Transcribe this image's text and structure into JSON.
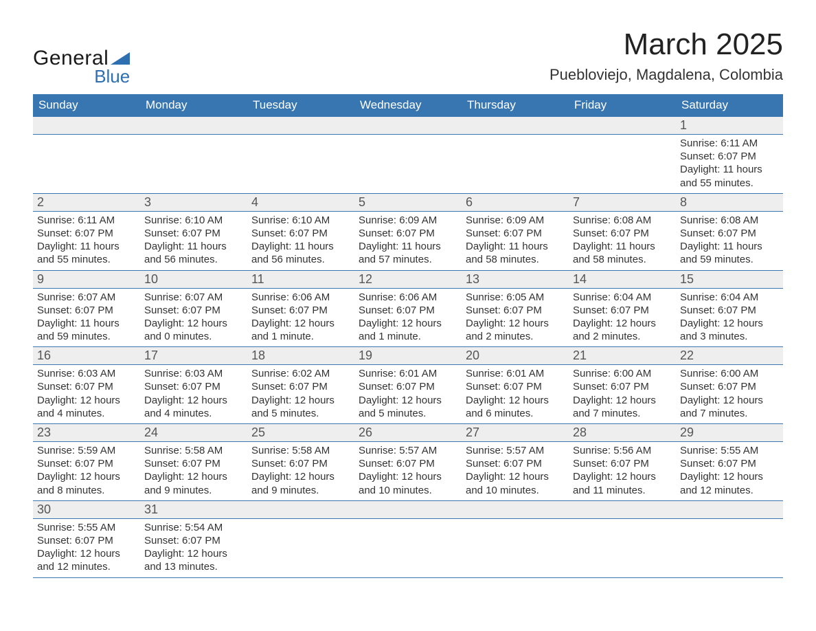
{
  "brand": {
    "word1": "General",
    "word2": "Blue",
    "tri_color": "#2d6fb0"
  },
  "header": {
    "title": "March 2025",
    "subtitle": "Puebloviejo, Magdalena, Colombia"
  },
  "colors": {
    "header_bg": "#3876b2",
    "header_fg": "#ffffff",
    "daynum_bg": "#eeeeee",
    "row_border": "#3876b2",
    "text": "#333333"
  },
  "weekdays": [
    "Sunday",
    "Monday",
    "Tuesday",
    "Wednesday",
    "Thursday",
    "Friday",
    "Saturday"
  ],
  "weeks": [
    [
      {
        "day": "",
        "sunrise": "",
        "sunset": "",
        "daylight": ""
      },
      {
        "day": "",
        "sunrise": "",
        "sunset": "",
        "daylight": ""
      },
      {
        "day": "",
        "sunrise": "",
        "sunset": "",
        "daylight": ""
      },
      {
        "day": "",
        "sunrise": "",
        "sunset": "",
        "daylight": ""
      },
      {
        "day": "",
        "sunrise": "",
        "sunset": "",
        "daylight": ""
      },
      {
        "day": "",
        "sunrise": "",
        "sunset": "",
        "daylight": ""
      },
      {
        "day": "1",
        "sunrise": "Sunrise: 6:11 AM",
        "sunset": "Sunset: 6:07 PM",
        "daylight": "Daylight: 11 hours and 55 minutes."
      }
    ],
    [
      {
        "day": "2",
        "sunrise": "Sunrise: 6:11 AM",
        "sunset": "Sunset: 6:07 PM",
        "daylight": "Daylight: 11 hours and 55 minutes."
      },
      {
        "day": "3",
        "sunrise": "Sunrise: 6:10 AM",
        "sunset": "Sunset: 6:07 PM",
        "daylight": "Daylight: 11 hours and 56 minutes."
      },
      {
        "day": "4",
        "sunrise": "Sunrise: 6:10 AM",
        "sunset": "Sunset: 6:07 PM",
        "daylight": "Daylight: 11 hours and 56 minutes."
      },
      {
        "day": "5",
        "sunrise": "Sunrise: 6:09 AM",
        "sunset": "Sunset: 6:07 PM",
        "daylight": "Daylight: 11 hours and 57 minutes."
      },
      {
        "day": "6",
        "sunrise": "Sunrise: 6:09 AM",
        "sunset": "Sunset: 6:07 PM",
        "daylight": "Daylight: 11 hours and 58 minutes."
      },
      {
        "day": "7",
        "sunrise": "Sunrise: 6:08 AM",
        "sunset": "Sunset: 6:07 PM",
        "daylight": "Daylight: 11 hours and 58 minutes."
      },
      {
        "day": "8",
        "sunrise": "Sunrise: 6:08 AM",
        "sunset": "Sunset: 6:07 PM",
        "daylight": "Daylight: 11 hours and 59 minutes."
      }
    ],
    [
      {
        "day": "9",
        "sunrise": "Sunrise: 6:07 AM",
        "sunset": "Sunset: 6:07 PM",
        "daylight": "Daylight: 11 hours and 59 minutes."
      },
      {
        "day": "10",
        "sunrise": "Sunrise: 6:07 AM",
        "sunset": "Sunset: 6:07 PM",
        "daylight": "Daylight: 12 hours and 0 minutes."
      },
      {
        "day": "11",
        "sunrise": "Sunrise: 6:06 AM",
        "sunset": "Sunset: 6:07 PM",
        "daylight": "Daylight: 12 hours and 1 minute."
      },
      {
        "day": "12",
        "sunrise": "Sunrise: 6:06 AM",
        "sunset": "Sunset: 6:07 PM",
        "daylight": "Daylight: 12 hours and 1 minute."
      },
      {
        "day": "13",
        "sunrise": "Sunrise: 6:05 AM",
        "sunset": "Sunset: 6:07 PM",
        "daylight": "Daylight: 12 hours and 2 minutes."
      },
      {
        "day": "14",
        "sunrise": "Sunrise: 6:04 AM",
        "sunset": "Sunset: 6:07 PM",
        "daylight": "Daylight: 12 hours and 2 minutes."
      },
      {
        "day": "15",
        "sunrise": "Sunrise: 6:04 AM",
        "sunset": "Sunset: 6:07 PM",
        "daylight": "Daylight: 12 hours and 3 minutes."
      }
    ],
    [
      {
        "day": "16",
        "sunrise": "Sunrise: 6:03 AM",
        "sunset": "Sunset: 6:07 PM",
        "daylight": "Daylight: 12 hours and 4 minutes."
      },
      {
        "day": "17",
        "sunrise": "Sunrise: 6:03 AM",
        "sunset": "Sunset: 6:07 PM",
        "daylight": "Daylight: 12 hours and 4 minutes."
      },
      {
        "day": "18",
        "sunrise": "Sunrise: 6:02 AM",
        "sunset": "Sunset: 6:07 PM",
        "daylight": "Daylight: 12 hours and 5 minutes."
      },
      {
        "day": "19",
        "sunrise": "Sunrise: 6:01 AM",
        "sunset": "Sunset: 6:07 PM",
        "daylight": "Daylight: 12 hours and 5 minutes."
      },
      {
        "day": "20",
        "sunrise": "Sunrise: 6:01 AM",
        "sunset": "Sunset: 6:07 PM",
        "daylight": "Daylight: 12 hours and 6 minutes."
      },
      {
        "day": "21",
        "sunrise": "Sunrise: 6:00 AM",
        "sunset": "Sunset: 6:07 PM",
        "daylight": "Daylight: 12 hours and 7 minutes."
      },
      {
        "day": "22",
        "sunrise": "Sunrise: 6:00 AM",
        "sunset": "Sunset: 6:07 PM",
        "daylight": "Daylight: 12 hours and 7 minutes."
      }
    ],
    [
      {
        "day": "23",
        "sunrise": "Sunrise: 5:59 AM",
        "sunset": "Sunset: 6:07 PM",
        "daylight": "Daylight: 12 hours and 8 minutes."
      },
      {
        "day": "24",
        "sunrise": "Sunrise: 5:58 AM",
        "sunset": "Sunset: 6:07 PM",
        "daylight": "Daylight: 12 hours and 9 minutes."
      },
      {
        "day": "25",
        "sunrise": "Sunrise: 5:58 AM",
        "sunset": "Sunset: 6:07 PM",
        "daylight": "Daylight: 12 hours and 9 minutes."
      },
      {
        "day": "26",
        "sunrise": "Sunrise: 5:57 AM",
        "sunset": "Sunset: 6:07 PM",
        "daylight": "Daylight: 12 hours and 10 minutes."
      },
      {
        "day": "27",
        "sunrise": "Sunrise: 5:57 AM",
        "sunset": "Sunset: 6:07 PM",
        "daylight": "Daylight: 12 hours and 10 minutes."
      },
      {
        "day": "28",
        "sunrise": "Sunrise: 5:56 AM",
        "sunset": "Sunset: 6:07 PM",
        "daylight": "Daylight: 12 hours and 11 minutes."
      },
      {
        "day": "29",
        "sunrise": "Sunrise: 5:55 AM",
        "sunset": "Sunset: 6:07 PM",
        "daylight": "Daylight: 12 hours and 12 minutes."
      }
    ],
    [
      {
        "day": "30",
        "sunrise": "Sunrise: 5:55 AM",
        "sunset": "Sunset: 6:07 PM",
        "daylight": "Daylight: 12 hours and 12 minutes."
      },
      {
        "day": "31",
        "sunrise": "Sunrise: 5:54 AM",
        "sunset": "Sunset: 6:07 PM",
        "daylight": "Daylight: 12 hours and 13 minutes."
      },
      {
        "day": "",
        "sunrise": "",
        "sunset": "",
        "daylight": ""
      },
      {
        "day": "",
        "sunrise": "",
        "sunset": "",
        "daylight": ""
      },
      {
        "day": "",
        "sunrise": "",
        "sunset": "",
        "daylight": ""
      },
      {
        "day": "",
        "sunrise": "",
        "sunset": "",
        "daylight": ""
      },
      {
        "day": "",
        "sunrise": "",
        "sunset": "",
        "daylight": ""
      }
    ]
  ]
}
